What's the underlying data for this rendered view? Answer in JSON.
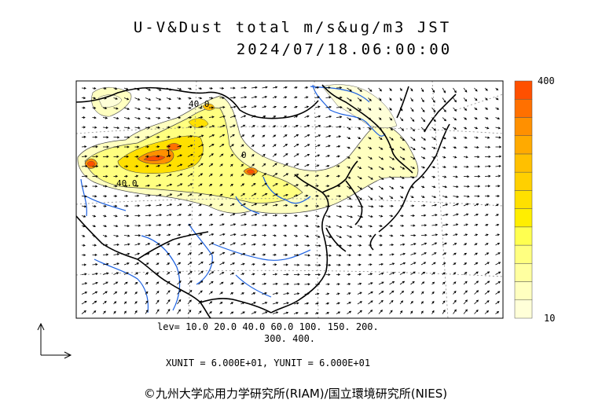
{
  "title_line1": "U-V&Dust total m/s&ug/m3 JST",
  "title_line2": "2024/07/18.06:00:00",
  "legend": {
    "max_label": "400",
    "min_label": "10",
    "colors": [
      "#ffffd8",
      "#ffffc0",
      "#ffffa0",
      "#ffff80",
      "#ffff50",
      "#ffee00",
      "#ffe000",
      "#ffd000",
      "#ffc000",
      "#ffaa00",
      "#ff9000",
      "#ff7000",
      "#ff5000"
    ]
  },
  "levels_line1": "lev= 10.0 20.0 40.0 60.0 100. 150. 200.",
  "levels_line2": "300. 400.",
  "units_line": "XUNIT = 6.000E+01, YUNIT = 6.000E+01",
  "contour_labels": [
    "40.0",
    "1",
    "40.0",
    "0"
  ],
  "copyright": "©九州大学応用力学研究所(RIAM)/国立環境研究所(NIES)"
}
